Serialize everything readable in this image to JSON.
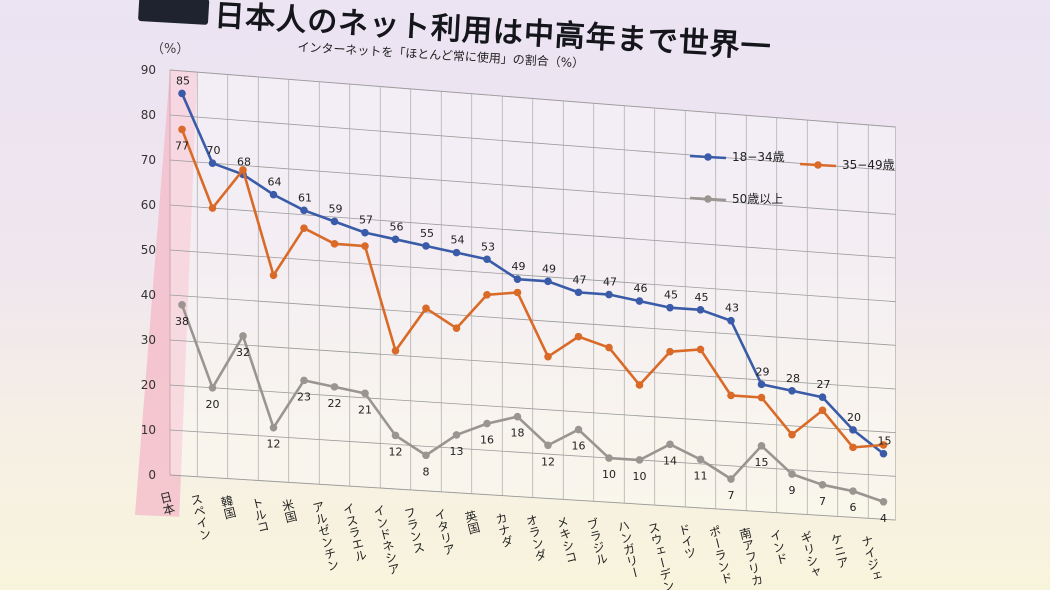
{
  "header": {
    "title": "日本人のネット利用は中高年まで世界一",
    "subtitle": "インターネットを「ほとんど常に使用」の割合（%）",
    "yunit": "（%）"
  },
  "chart_data": {
    "type": "line",
    "ylim": [
      0,
      90
    ],
    "yticks": [
      0,
      10,
      20,
      30,
      40,
      50,
      60,
      70,
      80,
      90
    ],
    "grid": true,
    "legend": "top-right",
    "categories": [
      "日本",
      "スペイン",
      "韓国",
      "トルコ",
      "米国",
      "アルゼンチン",
      "イスラエル",
      "インドネシア",
      "フランス",
      "イタリア",
      "英国",
      "カナダ",
      "オランダ",
      "メキシコ",
      "ブラジル",
      "ハンガリー",
      "スウェーデン",
      "ドイツ",
      "ポーランド",
      "南アフリカ",
      "インド",
      "ギリシャ",
      "ケニア",
      "ナイジェ"
    ],
    "highlight_category": "日本",
    "series": [
      {
        "name": "18−34歳",
        "color": "#3a5ba8",
        "values": [
          85,
          70,
          68,
          64,
          61,
          59,
          57,
          56,
          55,
          54,
          53,
          49,
          49,
          47,
          47,
          46,
          45,
          45,
          43,
          29,
          28,
          27,
          20,
          15
        ]
      },
      {
        "name": "35−49歳",
        "color": "#d96a28",
        "values": [
          77,
          60,
          69,
          46,
          57,
          54,
          54,
          31,
          41,
          37,
          45,
          46,
          32,
          37,
          35,
          27,
          35,
          36,
          26,
          26,
          18,
          24,
          16,
          17
        ]
      },
      {
        "name": "50歳以上",
        "color": "#9a9590",
        "values": [
          38,
          20,
          32,
          12,
          23,
          22,
          21,
          12,
          8,
          13,
          16,
          18,
          12,
          16,
          10,
          10,
          14,
          11,
          7,
          15,
          9,
          7,
          6,
          4
        ]
      }
    ],
    "data_labels": {
      "s0": [
        "85",
        "70",
        "68",
        "64",
        "61",
        "59",
        "57",
        "56",
        "55",
        "54",
        "53",
        "49",
        "49",
        "47",
        "47",
        "46",
        "45",
        "45",
        "43",
        "29",
        "28",
        "27",
        "20",
        "15"
      ],
      "s2": [
        "38",
        "20",
        "32",
        "12",
        "23",
        "22",
        "21",
        "12",
        "8",
        "13",
        "16",
        "18",
        "12",
        "16",
        "10",
        "10",
        "14",
        "11",
        "7",
        "15",
        "9",
        "7",
        "6",
        "4"
      ]
    },
    "s1_labels": {
      "0": "77"
    }
  }
}
